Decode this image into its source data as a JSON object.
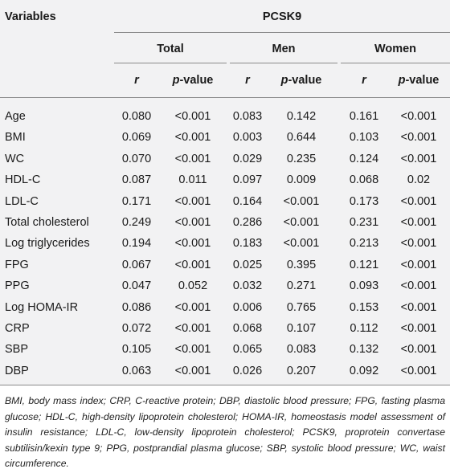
{
  "header": {
    "variables_label": "Variables",
    "group_label": "PCSK9",
    "subgroups": [
      "Total",
      "Men",
      "Women"
    ],
    "stat_r": "r",
    "stat_p_prefix": "p",
    "stat_p_suffix": "-value"
  },
  "rows": [
    {
      "label": "Age",
      "values": [
        "0.080",
        "<0.001",
        "0.083",
        "0.142",
        "0.161",
        "<0.001"
      ]
    },
    {
      "label": "BMI",
      "values": [
        "0.069",
        "<0.001",
        "0.003",
        "0.644",
        "0.103",
        "<0.001"
      ]
    },
    {
      "label": "WC",
      "values": [
        "0.070",
        "<0.001",
        "0.029",
        "0.235",
        "0.124",
        "<0.001"
      ]
    },
    {
      "label": "HDL-C",
      "values": [
        "0.087",
        "0.011",
        "0.097",
        "0.009",
        "0.068",
        "0.02"
      ]
    },
    {
      "label": "LDL-C",
      "values": [
        "0.171",
        "<0.001",
        "0.164",
        "<0.001",
        "0.173",
        "<0.001"
      ]
    },
    {
      "label": "Total cholesterol",
      "values": [
        "0.249",
        "<0.001",
        "0.286",
        "<0.001",
        "0.231",
        "<0.001"
      ]
    },
    {
      "label": "Log triglycerides",
      "values": [
        "0.194",
        "<0.001",
        "0.183",
        "<0.001",
        "0.213",
        "<0.001"
      ]
    },
    {
      "label": "FPG",
      "values": [
        "0.067",
        "<0.001",
        "0.025",
        "0.395",
        "0.121",
        "<0.001"
      ]
    },
    {
      "label": "PPG",
      "values": [
        "0.047",
        "0.052",
        "0.032",
        "0.271",
        "0.093",
        "<0.001"
      ]
    },
    {
      "label": "Log HOMA-IR",
      "values": [
        "0.086",
        "<0.001",
        "0.006",
        "0.765",
        "0.153",
        "<0.001"
      ]
    },
    {
      "label": "CRP",
      "values": [
        "0.072",
        "<0.001",
        "0.068",
        "0.107",
        "0.112",
        "<0.001"
      ]
    },
    {
      "label": "SBP",
      "values": [
        "0.105",
        "<0.001",
        "0.065",
        "0.083",
        "0.132",
        "<0.001"
      ]
    },
    {
      "label": "DBP",
      "values": [
        "0.063",
        "<0.001",
        "0.026",
        "0.207",
        "0.092",
        "<0.001"
      ]
    }
  ],
  "footnote": "BMI, body mass index; CRP, C-reactive protein; DBP, diastolic blood pressure; FPG, fasting plasma glucose; HDL-C, high-density lipoprotein cholesterol; HOMA-IR, homeostasis model assessment of insulin resistance; LDL-C, low-density lipoprotein cholesterol; PCSK9, proprotein convertase subtilisin/kexin type 9; PPG, postprandial plasma glucose; SBP, systolic blood pressure; WC, waist circumference."
}
